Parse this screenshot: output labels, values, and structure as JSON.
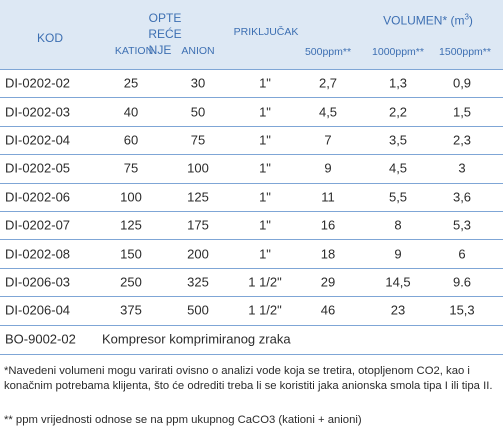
{
  "header": {
    "kod": "KOD",
    "opterecenje": [
      "OPTE",
      "REĆE",
      "NJE"
    ],
    "kation": "KATION",
    "anion": "ANION",
    "prikljucak": "PRIKLJUČAK",
    "volumen": "VOLUMEN* (m",
    "volumen_sup": "3",
    "volumen_close": ")",
    "ppm": [
      "500ppm**",
      "1000ppm**",
      "1500ppm**"
    ]
  },
  "table": {
    "rows": [
      [
        "DI-0202-02",
        "25",
        "30",
        "1\"",
        "2,7",
        "1,3",
        "0,9"
      ],
      [
        "DI-0202-03",
        "40",
        "50",
        "1\"",
        "4,5",
        "2,2",
        "1,5"
      ],
      [
        "DI-0202-04",
        "60",
        "75",
        "1\"",
        "7",
        "3,5",
        "2,3"
      ],
      [
        "DI-0202-05",
        "75",
        "100",
        "1\"",
        "9",
        "4,5",
        "3"
      ],
      [
        "DI-0202-06",
        "100",
        "125",
        "1\"",
        "11",
        "5,5",
        "3,6"
      ],
      [
        "DI-0202-07",
        "125",
        "175",
        "1\"",
        "16",
        "8",
        "5,3"
      ],
      [
        "DI-0202-08",
        "150",
        "200",
        "1\"",
        "18",
        "9",
        "6"
      ],
      [
        "DI-0206-03",
        "250",
        "325",
        "1 1/2\"",
        "29",
        "14,5",
        "9.6"
      ],
      [
        "DI-0206-04",
        "375",
        "500",
        "1 1/2\"",
        "46",
        "23",
        "15,3"
      ]
    ],
    "extra_row": {
      "code": "BO-9002-02",
      "description": "Kompresor komprimiranog zraka"
    }
  },
  "notes": [
    "*Navedeni volumeni mogu varirati ovisno o analizi vode koja se tretira, otopljenom CO2, kao i konačnim potrebama klijenta, što će odrediti treba li se koristiti jaka anionska smola tipa I ili tipa II.",
    "** ppm vrijednosti odnose se na ppm ukupnog CaCO3 (kationi + anioni)"
  ]
}
